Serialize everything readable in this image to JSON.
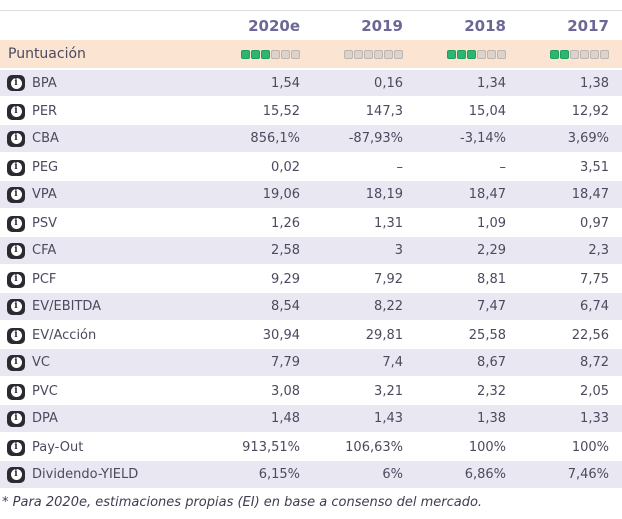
{
  "header": {
    "years": [
      "2020e",
      "2019",
      "2018",
      "2017"
    ]
  },
  "score_row": {
    "label": "Puntuación",
    "total_squares": 6,
    "scores": [
      3,
      0,
      3,
      2
    ]
  },
  "rows": [
    {
      "label": "BPA",
      "values": [
        "1,54",
        "0,16",
        "1,34",
        "1,38"
      ]
    },
    {
      "label": "PER",
      "values": [
        "15,52",
        "147,3",
        "15,04",
        "12,92"
      ]
    },
    {
      "label": "CBA",
      "values": [
        "856,1%",
        "-87,93%",
        "-3,14%",
        "3,69%"
      ]
    },
    {
      "label": "PEG",
      "values": [
        "0,02",
        "–",
        "–",
        "3,51"
      ]
    },
    {
      "label": "VPA",
      "values": [
        "19,06",
        "18,19",
        "18,47",
        "18,47"
      ]
    },
    {
      "label": "PSV",
      "values": [
        "1,26",
        "1,31",
        "1,09",
        "0,97"
      ]
    },
    {
      "label": "CFA",
      "values": [
        "2,58",
        "3",
        "2,29",
        "2,3"
      ]
    },
    {
      "label": "PCF",
      "values": [
        "9,29",
        "7,92",
        "8,81",
        "7,75"
      ]
    },
    {
      "label": "EV/EBITDA",
      "values": [
        "8,54",
        "8,22",
        "7,47",
        "6,74"
      ]
    },
    {
      "label": "EV/Acción",
      "values": [
        "30,94",
        "29,81",
        "25,58",
        "22,56"
      ]
    },
    {
      "label": "VC",
      "values": [
        "7,79",
        "7,4",
        "8,67",
        "8,72"
      ]
    },
    {
      "label": "PVC",
      "values": [
        "3,08",
        "3,21",
        "2,32",
        "2,05"
      ]
    },
    {
      "label": "DPA",
      "values": [
        "1,48",
        "1,43",
        "1,38",
        "1,33"
      ]
    },
    {
      "label": "Pay-Out",
      "values": [
        "913,51%",
        "106,63%",
        "100%",
        "100%"
      ]
    },
    {
      "label": "Dividendo-YIELD",
      "values": [
        "6,15%",
        "6%",
        "6,86%",
        "7,46%"
      ]
    }
  ],
  "icons": {
    "info": "info-icon",
    "info_glyph": "i"
  },
  "footnote": "* Para 2020e, estimaciones propias (EI) en base a consenso del mercado.",
  "colors": {
    "score_filled": "#2db671",
    "score_filled_border": "#1f9e5e",
    "score_empty": "#dbd3cc",
    "score_row_bg": "#fbe5d2",
    "row_shaded_bg": "#e9e8f2",
    "year_header_text": "#6b6896",
    "value_text": "#4b4a5e",
    "info_icon_bg": "#2a2a32"
  }
}
